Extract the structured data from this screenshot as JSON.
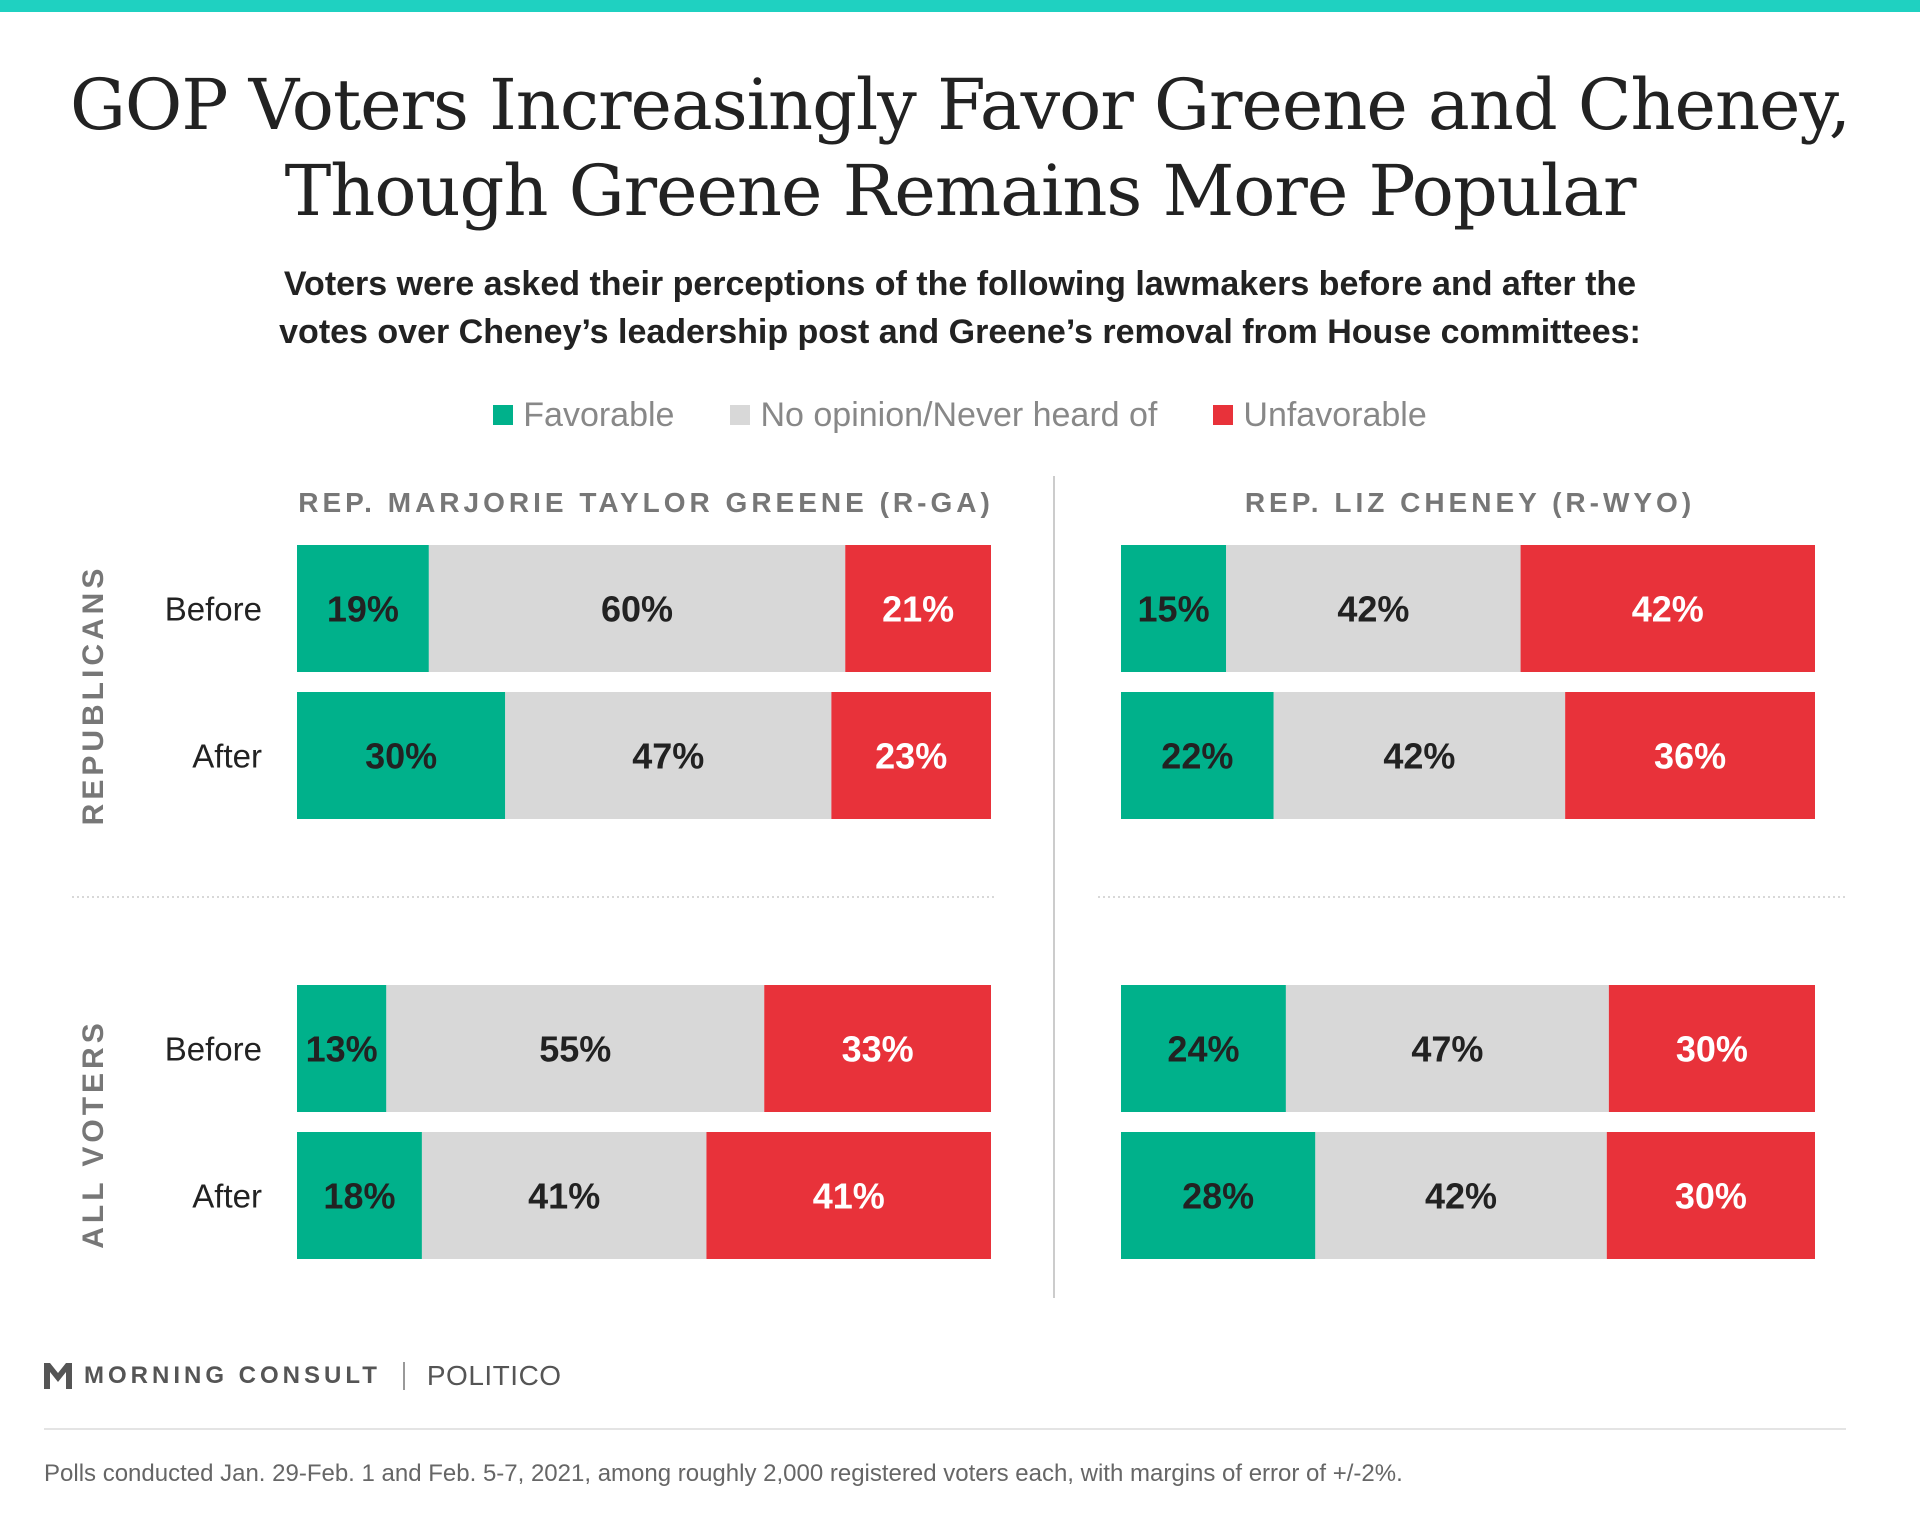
{
  "title_line1": "GOP Voters Increasingly Favor Greene and Cheney,",
  "title_line2": "Though Greene Remains More Popular",
  "subtitle_line1": "Voters were asked their perceptions of the following lawmakers before and after the",
  "subtitle_line2": "votes over Cheney’s leadership post and Greene’s removal from House committees:",
  "legend": [
    {
      "label": "Favorable",
      "color": "#00b18b"
    },
    {
      "label": "No opinion/Never heard of",
      "color": "#d8d8d8"
    },
    {
      "label": "Unfavorable",
      "color": "#e8323a"
    }
  ],
  "brand": {
    "morning_consult": "MORNING CONSULT",
    "politico": "POLITICO"
  },
  "note": "Polls conducted Jan. 29-Feb. 1 and Feb. 5-7, 2021, among roughly 2,000 registered voters each, with margins of error of +/-2%.",
  "chart_data": {
    "type": "bar",
    "stacked": true,
    "orientation": "horizontal",
    "percent": true,
    "colors": {
      "favorable": "#00b18b",
      "no_opinion": "#d8d8d8",
      "unfavorable": "#e8323a"
    },
    "panels": [
      {
        "name": "REP. MARJORIE TAYLOR GREENE (R-GA)"
      },
      {
        "name": "REP. LIZ CHENEY (R-WYO)"
      }
    ],
    "groups": [
      {
        "name": "REPUBLICANS"
      },
      {
        "name": "ALL VOTERS"
      }
    ],
    "rows": [
      "Before",
      "After"
    ],
    "values": [
      [
        [
          [
            19,
            60,
            21
          ],
          [
            30,
            47,
            23
          ]
        ],
        [
          [
            15,
            42,
            42
          ],
          [
            22,
            42,
            36
          ]
        ]
      ],
      [
        [
          [
            13,
            55,
            33
          ],
          [
            18,
            41,
            41
          ]
        ],
        [
          [
            24,
            47,
            30
          ],
          [
            28,
            42,
            30
          ]
        ]
      ]
    ]
  }
}
